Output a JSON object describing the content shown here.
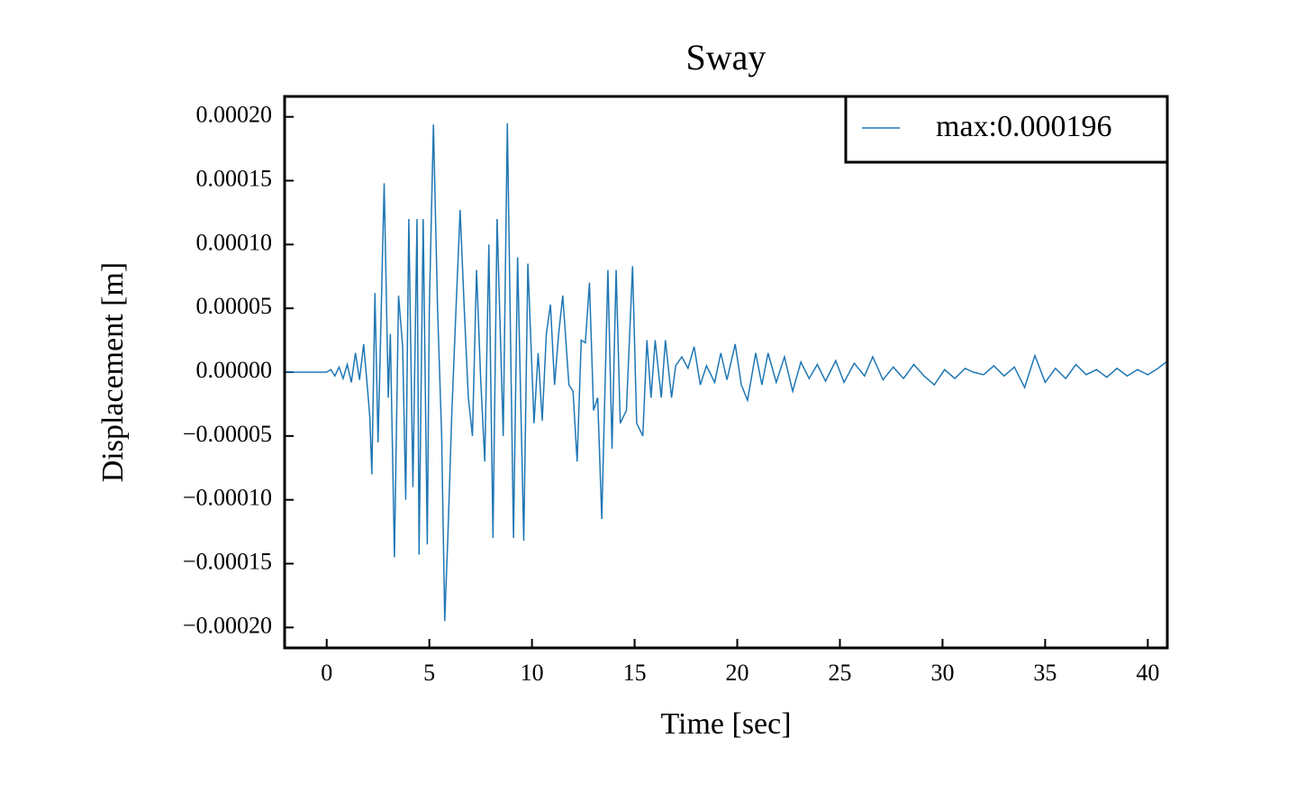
{
  "chart_data": {
    "type": "line",
    "title": "Sway",
    "xlabel": "Time [sec]",
    "ylabel": "Displacement [m]",
    "x": [
      -2,
      0,
      0.2,
      0.4,
      0.6,
      0.8,
      1.0,
      1.2,
      1.4,
      1.6,
      1.8,
      2.0,
      2.1,
      2.2,
      2.35,
      2.5,
      2.6,
      2.8,
      3.0,
      3.1,
      3.3,
      3.5,
      3.7,
      3.85,
      4.0,
      4.2,
      4.4,
      4.5,
      4.7,
      4.9,
      5.0,
      5.2,
      5.4,
      5.6,
      5.75,
      5.9,
      6.1,
      6.3,
      6.5,
      6.7,
      6.9,
      7.1,
      7.3,
      7.5,
      7.7,
      7.9,
      8.1,
      8.3,
      8.6,
      8.8,
      9.1,
      9.3,
      9.6,
      9.8,
      10.1,
      10.3,
      10.5,
      10.7,
      10.9,
      11.1,
      11.3,
      11.5,
      11.8,
      12.0,
      12.2,
      12.4,
      12.6,
      12.8,
      13.0,
      13.2,
      13.4,
      13.7,
      13.9,
      14.1,
      14.3,
      14.6,
      14.9,
      15.1,
      15.4,
      15.6,
      15.8,
      16.0,
      16.3,
      16.5,
      16.8,
      17.0,
      17.3,
      17.6,
      17.9,
      18.2,
      18.5,
      18.9,
      19.2,
      19.5,
      19.9,
      20.2,
      20.5,
      20.9,
      21.2,
      21.5,
      21.9,
      22.3,
      22.7,
      23.1,
      23.5,
      23.9,
      24.3,
      24.8,
      25.2,
      25.7,
      26.2,
      26.6,
      27.1,
      27.6,
      28.1,
      28.6,
      29.1,
      29.6,
      30.1,
      30.6,
      31.1,
      31.5,
      32.0,
      32.5,
      33.0,
      33.5,
      34.0,
      34.5,
      35.0,
      35.5,
      36.0,
      36.5,
      37.0,
      37.5,
      38.0,
      38.5,
      39.0,
      39.5,
      40.0,
      40.5,
      40.9
    ],
    "series": [
      {
        "name": "max:0.000196",
        "color": "#1f77b4",
        "values": [
          0,
          0,
          2e-06,
          -3e-06,
          4e-06,
          -5e-06,
          6e-06,
          -8e-06,
          1.5e-05,
          -6e-06,
          2.2e-05,
          -1.5e-05,
          -3.5e-05,
          -8e-05,
          6.2e-05,
          -5.5e-05,
          1e-05,
          0.000148,
          -2e-05,
          3e-05,
          -0.000145,
          6e-05,
          2e-05,
          -0.0001,
          0.00012,
          -9e-05,
          0.00012,
          -0.000143,
          0.00012,
          -0.000135,
          5e-05,
          0.000194,
          5e-05,
          -5e-05,
          -0.000195,
          -0.00013,
          -3e-05,
          5e-05,
          0.000127,
          5e-05,
          -2e-05,
          -5e-05,
          8e-05,
          -5e-06,
          -7e-05,
          0.0001,
          -0.00013,
          0.00012,
          -5e-05,
          0.000195,
          -0.00013,
          9e-05,
          -0.000132,
          8.5e-05,
          -4e-05,
          1.5e-05,
          -3.8e-05,
          3e-05,
          5.3e-05,
          -1e-05,
          3e-05,
          6e-05,
          -1e-05,
          -1.5e-05,
          -7e-05,
          2.5e-05,
          2.3e-05,
          7e-05,
          -3e-05,
          -2e-05,
          -0.000115,
          8e-05,
          -6e-05,
          8e-05,
          -4e-05,
          -3e-05,
          8.3e-05,
          -4e-05,
          -5e-05,
          2.5e-05,
          -2e-05,
          2.5e-05,
          -2e-05,
          2.5e-05,
          -2e-05,
          5e-06,
          1.2e-05,
          3e-06,
          2e-05,
          -1e-05,
          5e-06,
          -8e-06,
          1.5e-05,
          -6e-06,
          2.2e-05,
          -1e-05,
          -2.2e-05,
          1.5e-05,
          -1e-05,
          1.5e-05,
          -8e-06,
          1.2e-05,
          -1.5e-05,
          8e-06,
          -5e-06,
          6e-06,
          -7e-06,
          9e-06,
          -8e-06,
          7e-06,
          -3e-06,
          1.2e-05,
          -6e-06,
          4e-06,
          -5e-06,
          6e-06,
          -3e-06,
          -1e-05,
          2e-06,
          -5e-06,
          3e-06,
          0,
          -2e-06,
          5e-06,
          -3e-06,
          4e-06,
          -1.2e-05,
          1.3e-05,
          -8e-06,
          3e-06,
          -5e-06,
          6e-06,
          -2e-06,
          2e-06,
          -4e-06,
          3e-06,
          -3e-06,
          2e-06,
          -2e-06,
          3e-06,
          8e-06
        ]
      }
    ],
    "xlim": [
      -2.05,
      40.95
    ],
    "ylim": [
      -0.000216,
      0.000216
    ],
    "xticks": [
      0,
      5,
      10,
      15,
      20,
      25,
      30,
      35,
      40
    ],
    "yticks": [
      {
        "value": 0.0002,
        "label": "0.00020"
      },
      {
        "value": 0.00015,
        "label": "0.00015"
      },
      {
        "value": 0.0001,
        "label": "0.00010"
      },
      {
        "value": 5e-05,
        "label": "0.00005"
      },
      {
        "value": 0,
        "label": "0.00000"
      },
      {
        "value": -5e-05,
        "label": "−0.00005"
      },
      {
        "value": -0.0001,
        "label": "−0.00010"
      },
      {
        "value": -0.00015,
        "label": "−0.00015"
      },
      {
        "value": -0.0002,
        "label": "−0.00020"
      }
    ],
    "legend": "upper right"
  }
}
